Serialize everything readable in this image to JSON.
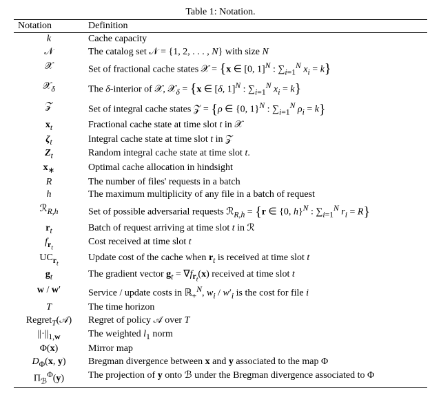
{
  "caption": "Table 1: Notation.",
  "headers": {
    "notation": "Notation",
    "definition": "Definition"
  },
  "rows": [
    {
      "n": "<i>k</i>",
      "d": "Cache capacity"
    },
    {
      "n": "𝒩",
      "d": "The catalog set 𝒩 = {1, 2, . . . , <i>N</i>} with size <i>N</i>"
    },
    {
      "n": "𝒳",
      "d": "Set of fractional cache states 𝒳 = <span class=\"bigbrace\">{</span><b>x</b> ∈ [0, 1]<sup><i>N</i></sup> : ∑<sub><i>i</i>=1</sub><sup><i>N</i></sup> <i>x</i><sub><i>i</i></sub> = <i>k</i><span class=\"bigbrace\">}</span>",
      "big": true
    },
    {
      "n": "𝒳<sub><i>δ</i></sub>",
      "d": "The <i>δ</i>-interior of 𝒳, 𝒳<sub><i>δ</i></sub> = <span class=\"bigbrace\">{</span><b>x</b> ∈ [<i>δ</i>, 1]<sup><i>N</i></sup> : ∑<sub><i>i</i>=1</sub><sup><i>N</i></sup> <i>x</i><sub><i>i</i></sub> = <i>k</i><span class=\"bigbrace\">}</span>",
      "big": true
    },
    {
      "n": "𝒵",
      "d": "Set of integral cache states 𝒵 = <span class=\"bigbrace\">{</span><i>ρ</i> ∈ {0, 1}<sup><i>N</i></sup> : ∑<sub><i>i</i>=1</sub><sup><i>N</i></sup> <i>ρ</i><sub><i>i</i></sub> = <i>k</i><span class=\"bigbrace\">}</span>",
      "big": true
    },
    {
      "n": "<b>x</b><sub><i>t</i></sub>",
      "d": "Fractional cache state at time slot <i>t</i> in 𝒳"
    },
    {
      "n": "<b><i>ζ</i></b><sub><i>t</i></sub>",
      "d": "Integral cache state at time slot <i>t</i> in 𝒵"
    },
    {
      "n": "<b><i>Z</i></b><sub><i>t</i></sub>",
      "d": "Random integral cache state at time slot <i>t</i>."
    },
    {
      "n": "<b>x</b><sub>∗</sub>",
      "d": "Optimal cache allocation in hindsight"
    },
    {
      "n": "<i>R</i>",
      "d": "The number of files' requests in a batch"
    },
    {
      "n": "<i>h</i>",
      "d": "The maximum multiplicity of any file in a batch of request"
    },
    {
      "n": "ℛ<sub><i>R,h</i></sub>",
      "d": "Set of possible adversarial requests ℛ<sub><i>R,h</i></sub> = <span class=\"bigbrace\">{</span><b>r</b> ∈ {0, <i>h</i>}<sup><i>N</i></sup> : ∑<sub><i>i</i>=1</sub><sup><i>N</i></sup> <i>r</i><sub><i>i</i></sub> = <i>R</i><span class=\"bigbrace\">}</span>",
      "big": true
    },
    {
      "n": "<b>r</b><sub><i>t</i></sub>",
      "d": "Batch of request arriving at time slot <i>t</i> in ℛ"
    },
    {
      "n": "<i>f</i><sub><b>r</b><sub><i>t</i></sub></sub>",
      "d": "Cost received at time slot <i>t</i>"
    },
    {
      "n": "UC<sub><b>r</b><sub><i>t</i></sub></sub>",
      "d": "Update cost of the cache when <b>r</b><sub><i>t</i></sub> is received at time slot <i>t</i>"
    },
    {
      "n": "<b>g</b><sub><i>t</i></sub>",
      "d": "The gradient vector <b>g</b><sub><i>t</i></sub> = ∇<i>f</i><sub><b>r</b><sub><i>t</i></sub></sub>(<b>x</b>) received at time slot <i>t</i>"
    },
    {
      "n": "<b>w</b> / <b>w</b>′",
      "d": "Service / update costs in ℝ<sub>+</sub><sup><i>N</i></sup>, <i>w</i><sub><i>i</i></sub> / <i>w</i>′<sub><i>i</i></sub> is the cost for file <i>i</i>"
    },
    {
      "n": "<i>T</i>",
      "d": "The time horizon"
    },
    {
      "n": "Regret<sub><i>T</i></sub>(𝒜)",
      "d": "Regret of policy 𝒜 over <i>T</i>"
    },
    {
      "n": "||·||<sub>1,<b>w</b></sub>",
      "d": "The weighted <i>l</i><sub>1</sub> norm"
    },
    {
      "n": "Φ(<b>x</b>)",
      "d": "Mirror map"
    },
    {
      "n": "<i>D</i><sub>Φ</sub>(<b>x</b>, <b>y</b>)",
      "d": "Bregman divergence between <b>x</b> and <b>y</b> associated to the map Φ"
    },
    {
      "n": "Π<sub>ℬ</sub><sup>Φ</sup>(<b>y</b>)",
      "d": "The projection of <b>y</b> onto ℬ under the Bregman divergence associated to Φ"
    }
  ]
}
